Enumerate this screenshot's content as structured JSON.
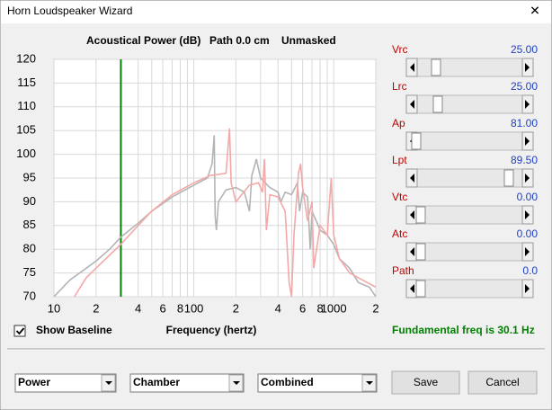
{
  "window": {
    "title": "Horn Loudspeaker Wizard",
    "close": "✕"
  },
  "chart_data": {
    "type": "line",
    "title_parts": [
      "Acoustical Power (dB)",
      "Path 0.0 cm",
      "Unmasked"
    ],
    "x_label": "Frequency (hertz)",
    "log_x": true,
    "grid": true,
    "xlim": [
      10,
      2000
    ],
    "ylim": [
      70,
      120
    ],
    "yticks": [
      70,
      75,
      80,
      85,
      90,
      95,
      100,
      105,
      110,
      115,
      120
    ],
    "xticks": [
      10,
      {
        "value": 20,
        "label": "2"
      },
      {
        "value": 40,
        "label": "4"
      },
      {
        "value": 60,
        "label": "6"
      },
      {
        "value": 80,
        "label": "8"
      },
      100,
      {
        "value": 200,
        "label": "2"
      },
      {
        "value": 400,
        "label": "4"
      },
      {
        "value": 600,
        "label": "6"
      },
      {
        "value": 800,
        "label": "8"
      },
      1000,
      {
        "value": 2000,
        "label": "2"
      }
    ],
    "xminor": [
      30,
      50,
      70,
      90,
      300,
      500,
      700,
      900
    ],
    "marker": {
      "value": 30.1,
      "label": "Fundamental freq is 30.1 Hz",
      "color": "#008000"
    },
    "series": [
      {
        "color": "#b4b4b4",
        "x": [
          10,
          13,
          17,
          20,
          25,
          30,
          40,
          50,
          70,
          100,
          125,
          135,
          140,
          142,
          145,
          150,
          170,
          200,
          230,
          250,
          260,
          280,
          300,
          350,
          400,
          420,
          450,
          500,
          550,
          570,
          600,
          650,
          680,
          700,
          750,
          800,
          900,
          1000,
          1100,
          1300,
          1500,
          1800,
          2000
        ],
        "values": [
          70,
          73.5,
          76,
          77.5,
          80,
          82.5,
          85.5,
          88,
          91,
          93.5,
          95,
          98,
          104,
          87,
          84,
          90,
          92.5,
          93,
          92,
          88,
          95.5,
          99,
          95,
          93,
          92,
          90,
          92,
          91.5,
          94,
          88,
          92,
          91,
          80,
          88,
          86,
          84,
          83,
          81,
          78,
          76,
          73,
          72,
          70
        ]
      },
      {
        "color": "#f4a8a8",
        "x": [
          14,
          17,
          20,
          30,
          40,
          50,
          70,
          100,
          130,
          170,
          180,
          185,
          200,
          250,
          290,
          310,
          320,
          330,
          350,
          400,
          450,
          480,
          500,
          520,
          560,
          580,
          600,
          650,
          700,
          720,
          800,
          900,
          960,
          1000,
          1100,
          1300,
          1500,
          2000
        ],
        "values": [
          70,
          74,
          76,
          81,
          85,
          88,
          91.5,
          94,
          95.5,
          96,
          105.5,
          94,
          90,
          93.5,
          94,
          92,
          99,
          84,
          91.5,
          91,
          88,
          73,
          70,
          83,
          96,
          98,
          93,
          86,
          90,
          76,
          85,
          83,
          95,
          83,
          78,
          75,
          74,
          72
        ]
      }
    ]
  },
  "sliders": [
    {
      "name": "Vrc",
      "value": "25.00"
    },
    {
      "name": "Lrc",
      "value": "25.00"
    },
    {
      "name": "Ap",
      "value": "81.00"
    },
    {
      "name": "Lpt",
      "value": "89.50"
    },
    {
      "name": "Vtc",
      "value": "0.00"
    },
    {
      "name": "Atc",
      "value": "0.00"
    },
    {
      "name": "Path",
      "value": "0.0"
    }
  ],
  "checkbox": {
    "label": "Show Baseline",
    "checked": true
  },
  "dropdowns": [
    "Power",
    "Chamber",
    "Combined"
  ],
  "buttons": [
    "Save",
    "Cancel"
  ]
}
